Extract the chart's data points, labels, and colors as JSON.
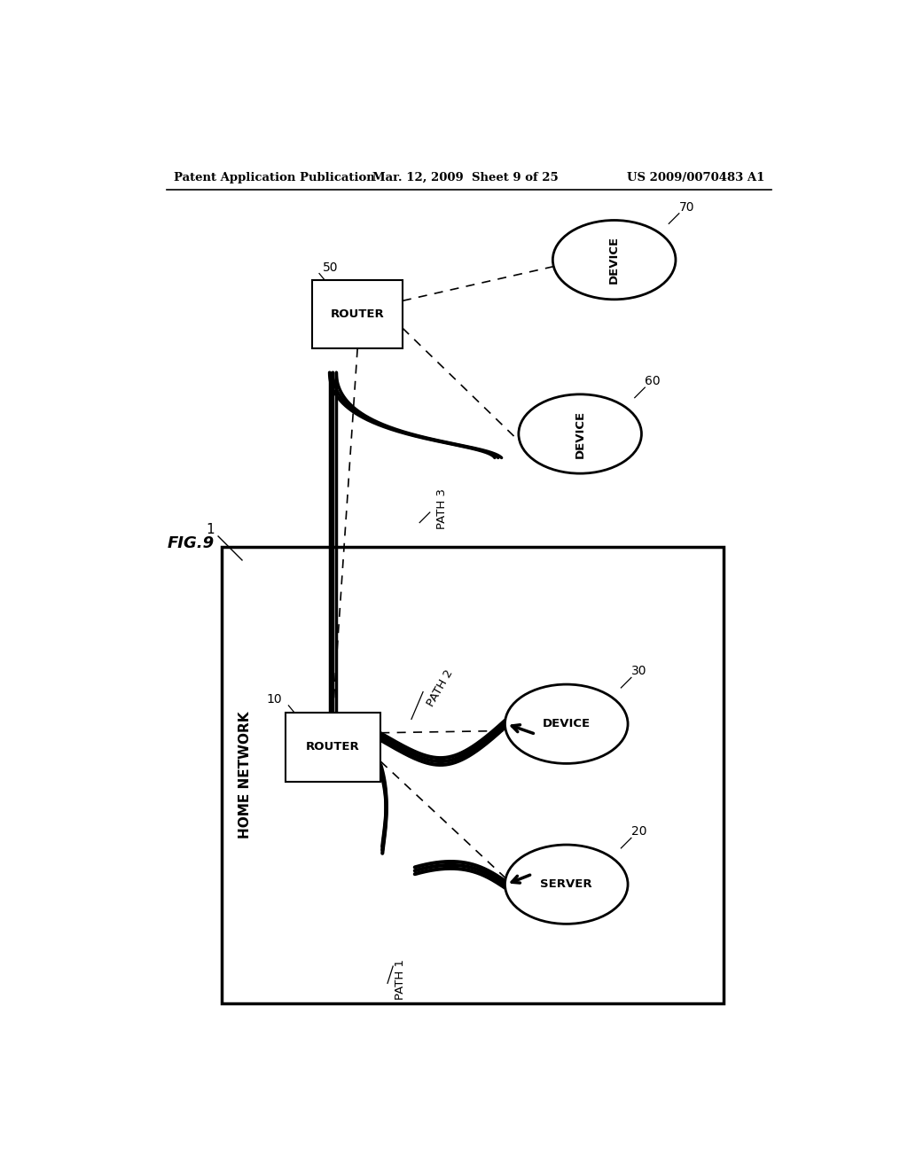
{
  "bg_color": "#ffffff",
  "header_left": "Patent Application Publication",
  "header_mid": "Mar. 12, 2009  Sheet 9 of 25",
  "header_right": "US 2009/0070483 A1",
  "fig_label": "FIG.9",
  "home_network_label": "HOME NETWORK",
  "home_network_ref": "1",
  "outer_router_label": "ROUTER",
  "outer_router_ref": "50",
  "inner_router_label": "ROUTER",
  "inner_router_ref": "10",
  "server_label": "SERVER",
  "server_ref": "20",
  "device30_label": "DEVICE",
  "device30_ref": "30",
  "device60_label": "DEVICE",
  "device60_ref": "60",
  "device70_label": "DEVICE",
  "device70_ref": "70",
  "path1_label": "PATH 1",
  "path2_label": "PATH 2",
  "path3_label": "PATH 3"
}
